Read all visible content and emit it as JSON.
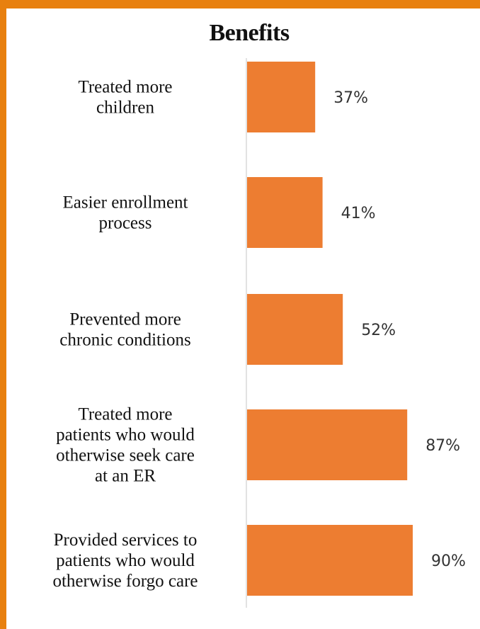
{
  "chart_data": {
    "type": "bar",
    "orientation": "horizontal",
    "title": "Benefits",
    "categories": [
      [
        "Treated more",
        "children"
      ],
      [
        "Easier enrollment",
        "process"
      ],
      [
        "Prevented more",
        "chronic conditions"
      ],
      [
        "Treated more",
        "patients who would",
        "otherwise seek care",
        "at an ER"
      ],
      [
        "Provided services to",
        "patients who would",
        "otherwise forgo care"
      ]
    ],
    "values": [
      37,
      41,
      52,
      87,
      90
    ],
    "value_labels": [
      "37%",
      "41%",
      "52%",
      "87%",
      "90%"
    ],
    "unit": "%",
    "xlim": [
      0,
      100
    ],
    "grid": false,
    "legend": "none"
  },
  "colors": {
    "frame": "#e8800f",
    "bar": "#ed7d31",
    "axis": "#d9d9d9"
  }
}
